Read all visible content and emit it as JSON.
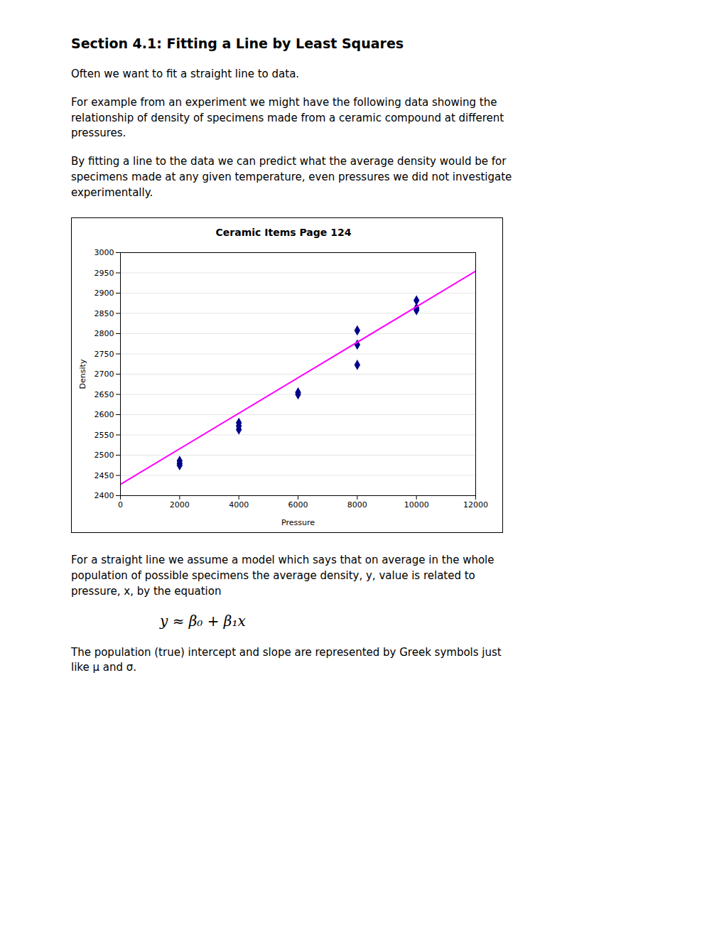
{
  "chart_data": {
    "type": "scatter",
    "title": "Ceramic Items Page 124",
    "x_label": "Pressure",
    "y_label": "Density",
    "xlim": [
      0,
      12000
    ],
    "ylim": [
      2400,
      3000
    ],
    "xticks": [
      0,
      2000,
      4000,
      6000,
      8000,
      10000,
      12000
    ],
    "yticks": [
      2400,
      2450,
      2500,
      2550,
      2600,
      2650,
      2700,
      2750,
      2800,
      2850,
      2900,
      2950,
      3000
    ],
    "grid": "y",
    "series": [
      {
        "type": "scatter",
        "color": "#00008B",
        "marker": "diamond",
        "x": [
          2000,
          2000,
          2000,
          4000,
          4000,
          4000,
          6000,
          6000,
          8000,
          8000,
          8000,
          10000,
          10000,
          10000
        ],
        "values": [
          2475,
          2480,
          2486,
          2563,
          2572,
          2580,
          2650,
          2655,
          2723,
          2773,
          2808,
          2858,
          2863,
          2882
        ]
      },
      {
        "type": "line",
        "color": "#FF00FF",
        "line_style": "solid",
        "x": [
          0,
          12000
        ],
        "values": [
          2428,
          2954.2
        ]
      }
    ],
    "annotations": [
      "Section 4.1: Fitting a Line by Least Squares",
      "Often we want to fit a straight line to data.",
      "For example from an experiment we might have the following data showing the\nrelationship of density of specimens made from a ceramic compound at different\npressures.",
      "By fitting a line to the data we can predict what the average density would be for\nspecimens made at any given temperature, even pressures we did not investigate\nexperimentally.",
      "For a straight line we assume a model which says that on average in the whole\npopulation of possible specimens the average density, y, value is related to\npressure, x, by the equation",
      "y ≈ β₀ + β₁x",
      "The population (true) intercept and slope are represented by Greek symbols just\nlike μ and σ."
    ]
  }
}
